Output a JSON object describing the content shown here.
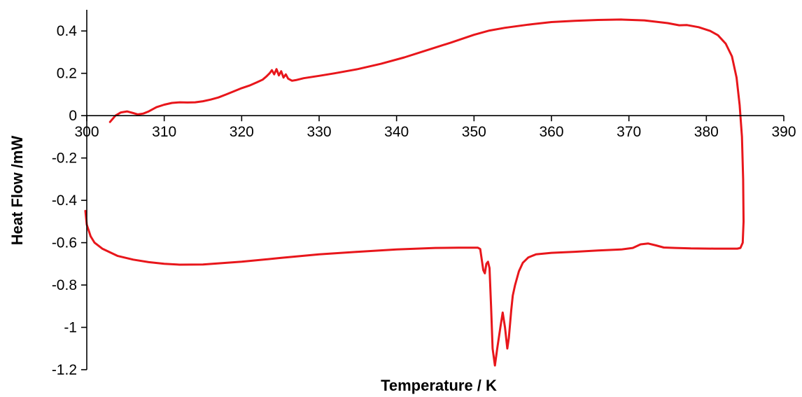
{
  "chart_data": {
    "type": "line",
    "title": "",
    "xlabel": "Temperature / K",
    "ylabel": "Heat Flow /mW",
    "xlim": [
      300,
      390
    ],
    "ylim": [
      -1.2,
      0.5
    ],
    "x_ticks": [
      300,
      310,
      320,
      330,
      340,
      350,
      360,
      370,
      380,
      390
    ],
    "x_tick_labels": [
      "300",
      "310",
      "320",
      "330",
      "340",
      "350",
      "360",
      "370",
      "380",
      "390"
    ],
    "y_ticks": [
      0.4,
      0.2,
      0,
      -0.2,
      -0.4,
      -0.6,
      -0.8,
      -1,
      -1.2
    ],
    "y_tick_labels": [
      "0.4",
      "0.2",
      "0",
      "-0.2",
      "-0.4",
      "-0.6",
      "-0.8",
      "-1",
      "-1.2"
    ],
    "x_axis_crosses_y_at": 0,
    "grid": false,
    "legend": "none",
    "series": [
      {
        "color": "#e8161b",
        "points": [
          [
            303.0,
            -0.03
          ],
          [
            303.7,
            0.0
          ],
          [
            304.4,
            0.015
          ],
          [
            305.2,
            0.02
          ],
          [
            306.0,
            0.012
          ],
          [
            306.6,
            0.006
          ],
          [
            307.3,
            0.01
          ],
          [
            308.0,
            0.02
          ],
          [
            309.0,
            0.04
          ],
          [
            310.0,
            0.052
          ],
          [
            311.0,
            0.06
          ],
          [
            312.0,
            0.063
          ],
          [
            313.0,
            0.062
          ],
          [
            314.0,
            0.063
          ],
          [
            315.0,
            0.068
          ],
          [
            316.0,
            0.076
          ],
          [
            317.0,
            0.086
          ],
          [
            318.0,
            0.1
          ],
          [
            319.0,
            0.115
          ],
          [
            320.0,
            0.13
          ],
          [
            321.0,
            0.142
          ],
          [
            322.0,
            0.158
          ],
          [
            322.7,
            0.17
          ],
          [
            323.2,
            0.185
          ],
          [
            323.6,
            0.2
          ],
          [
            323.9,
            0.215
          ],
          [
            324.2,
            0.195
          ],
          [
            324.5,
            0.22
          ],
          [
            324.8,
            0.19
          ],
          [
            325.1,
            0.21
          ],
          [
            325.4,
            0.18
          ],
          [
            325.7,
            0.195
          ],
          [
            326.0,
            0.175
          ],
          [
            326.5,
            0.165
          ],
          [
            327.0,
            0.168
          ],
          [
            328.0,
            0.177
          ],
          [
            330.0,
            0.188
          ],
          [
            332.0,
            0.2
          ],
          [
            335.0,
            0.22
          ],
          [
            338.0,
            0.245
          ],
          [
            341.0,
            0.275
          ],
          [
            344.0,
            0.31
          ],
          [
            347.0,
            0.345
          ],
          [
            350.0,
            0.382
          ],
          [
            352.0,
            0.402
          ],
          [
            354.0,
            0.415
          ],
          [
            357.0,
            0.43
          ],
          [
            360.0,
            0.442
          ],
          [
            363.0,
            0.448
          ],
          [
            366.0,
            0.452
          ],
          [
            369.0,
            0.454
          ],
          [
            372.0,
            0.45
          ],
          [
            375.0,
            0.437
          ],
          [
            376.5,
            0.427
          ],
          [
            377.5,
            0.428
          ],
          [
            379.0,
            0.418
          ],
          [
            380.5,
            0.4
          ],
          [
            381.5,
            0.38
          ],
          [
            382.5,
            0.34
          ],
          [
            383.3,
            0.28
          ],
          [
            383.9,
            0.18
          ],
          [
            384.3,
            0.05
          ],
          [
            384.6,
            -0.1
          ],
          [
            384.75,
            -0.3
          ],
          [
            384.8,
            -0.5
          ],
          [
            384.7,
            -0.6
          ],
          [
            384.4,
            -0.625
          ],
          [
            384.0,
            -0.628
          ],
          [
            383.0,
            -0.628
          ],
          [
            381.0,
            -0.628
          ],
          [
            378.0,
            -0.627
          ],
          [
            376.0,
            -0.625
          ],
          [
            374.5,
            -0.623
          ],
          [
            373.5,
            -0.613
          ],
          [
            372.5,
            -0.604
          ],
          [
            371.5,
            -0.608
          ],
          [
            370.5,
            -0.625
          ],
          [
            369.0,
            -0.632
          ],
          [
            366.0,
            -0.637
          ],
          [
            363.0,
            -0.643
          ],
          [
            360.0,
            -0.648
          ],
          [
            358.0,
            -0.655
          ],
          [
            357.0,
            -0.67
          ],
          [
            356.3,
            -0.695
          ],
          [
            355.8,
            -0.735
          ],
          [
            355.3,
            -0.8
          ],
          [
            355.0,
            -0.85
          ],
          [
            354.8,
            -0.92
          ],
          [
            354.5,
            -1.05
          ],
          [
            354.3,
            -1.1
          ],
          [
            354.0,
            -1.0
          ],
          [
            353.7,
            -0.93
          ],
          [
            353.4,
            -1.0
          ],
          [
            353.0,
            -1.1
          ],
          [
            352.7,
            -1.18
          ],
          [
            352.4,
            -1.1
          ],
          [
            352.2,
            -0.9
          ],
          [
            352.0,
            -0.72
          ],
          [
            351.8,
            -0.69
          ],
          [
            351.6,
            -0.7
          ],
          [
            351.4,
            -0.745
          ],
          [
            351.2,
            -0.73
          ],
          [
            351.0,
            -0.68
          ],
          [
            350.8,
            -0.63
          ],
          [
            350.5,
            -0.624
          ],
          [
            348.0,
            -0.624
          ],
          [
            345.0,
            -0.625
          ],
          [
            340.0,
            -0.632
          ],
          [
            335.0,
            -0.643
          ],
          [
            330.0,
            -0.655
          ],
          [
            325.0,
            -0.672
          ],
          [
            320.0,
            -0.69
          ],
          [
            315.0,
            -0.703
          ],
          [
            312.0,
            -0.704
          ],
          [
            310.0,
            -0.7
          ],
          [
            308.0,
            -0.692
          ],
          [
            306.0,
            -0.68
          ],
          [
            304.0,
            -0.663
          ],
          [
            302.0,
            -0.628
          ],
          [
            301.0,
            -0.6
          ],
          [
            300.5,
            -0.57
          ],
          [
            300.0,
            -0.515
          ],
          [
            299.5,
            -0.45
          ]
        ]
      }
    ]
  }
}
